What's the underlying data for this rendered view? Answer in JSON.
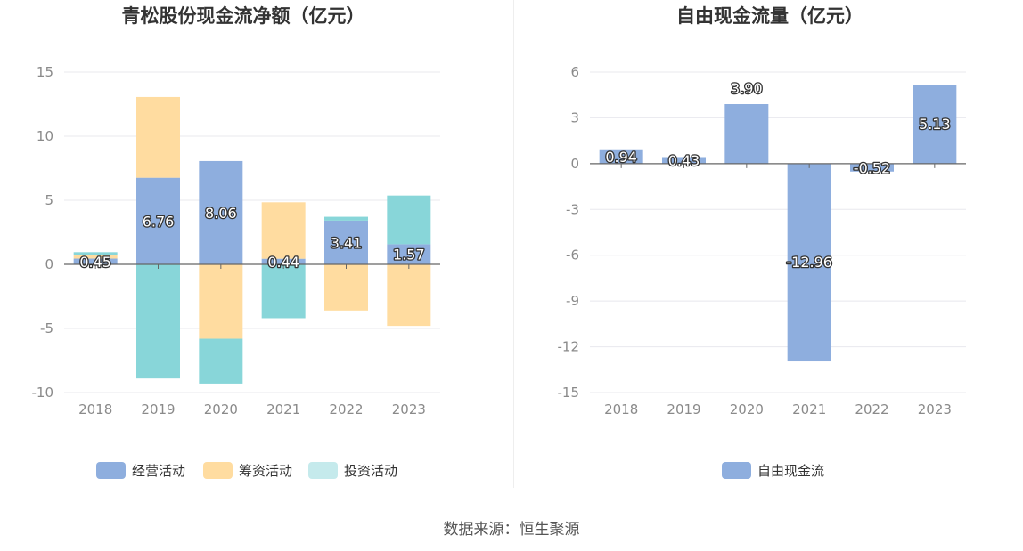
{
  "colors": {
    "operating": "#8eaede",
    "financing": "#ffdca0",
    "investing": "#88d6d9",
    "investing_legend": "#c5eaec",
    "free_cash_flow": "#8eaede",
    "grid": "#e8e8ee",
    "axis": "#666666"
  },
  "chart_data": [
    {
      "type": "bar",
      "stacked": true,
      "title": "青松股份现金流净额（亿元）",
      "categories": [
        "2018",
        "2019",
        "2020",
        "2021",
        "2022",
        "2023"
      ],
      "ylim": [
        -10,
        15
      ],
      "yticks": [
        15,
        10,
        5,
        0,
        -5,
        -10
      ],
      "ytick_labels": [
        "15",
        "10",
        "5",
        "0",
        "-5",
        "-10"
      ],
      "series": [
        {
          "name": "经营活动",
          "key": "operating",
          "values": [
            0.45,
            6.76,
            8.06,
            0.44,
            3.41,
            1.57
          ],
          "labels": [
            "0.45",
            "6.76",
            "8.06",
            "0.44",
            "3.41",
            "1.57"
          ]
        },
        {
          "name": "筹资活动",
          "key": "financing",
          "values": [
            0.3,
            6.3,
            -5.8,
            4.4,
            -3.6,
            -4.8
          ]
        },
        {
          "name": "投资活动",
          "key": "investing",
          "values": [
            0.2,
            -8.9,
            -3.5,
            -4.2,
            0.3,
            3.8
          ]
        }
      ],
      "legend_position": "bottom"
    },
    {
      "type": "bar",
      "title": "自由现金流量（亿元）",
      "categories": [
        "2018",
        "2019",
        "2020",
        "2021",
        "2022",
        "2023"
      ],
      "ylim": [
        -15,
        6
      ],
      "yticks": [
        6,
        3,
        0,
        -3,
        -6,
        -9,
        -12,
        -15
      ],
      "ytick_labels": [
        "6",
        "3",
        "0",
        "-3",
        "-6",
        "-9",
        "-12",
        "-15"
      ],
      "series": [
        {
          "name": "自由现金流",
          "key": "free_cash_flow",
          "values": [
            0.94,
            0.43,
            3.9,
            -12.96,
            -0.52,
            5.13
          ],
          "labels": [
            "0.94",
            "0.43",
            "3.90",
            "-12.96",
            "-0.52",
            "5.13"
          ]
        }
      ],
      "legend_position": "bottom"
    }
  ],
  "source": "数据来源：恒生聚源"
}
